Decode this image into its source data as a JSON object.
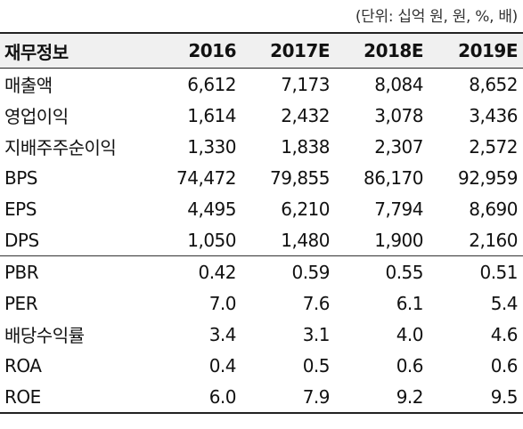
{
  "unit_note": "(단위: 십억 원, 원, %, 배)",
  "header": {
    "label": "재무정보",
    "years": [
      "2016",
      "2017E",
      "2018E",
      "2019E"
    ]
  },
  "rows": [
    {
      "label": "매출액",
      "values": [
        "6,612",
        "7,173",
        "8,084",
        "8,652"
      ]
    },
    {
      "label": "영업이익",
      "values": [
        "1,614",
        "2,432",
        "3,078",
        "3,436"
      ]
    },
    {
      "label": "지배주주순이익",
      "values": [
        "1,330",
        "1,838",
        "2,307",
        "2,572"
      ]
    },
    {
      "label": "BPS",
      "values": [
        "74,472",
        "79,855",
        "86,170",
        "92,959"
      ]
    },
    {
      "label": "EPS",
      "values": [
        "4,495",
        "6,210",
        "7,794",
        "8,690"
      ]
    },
    {
      "label": "DPS",
      "values": [
        "1,050",
        "1,480",
        "1,900",
        "2,160"
      ]
    },
    {
      "label": "PBR",
      "values": [
        "0.42",
        "0.59",
        "0.55",
        "0.51"
      ]
    },
    {
      "label": "PER",
      "values": [
        "7.0",
        "7.6",
        "6.1",
        "5.4"
      ]
    },
    {
      "label": "배당수익률",
      "values": [
        "3.4",
        "3.1",
        "4.0",
        "4.6"
      ]
    },
    {
      "label": "ROA",
      "values": [
        "0.4",
        "0.5",
        "0.6",
        "0.6"
      ]
    },
    {
      "label": "ROE",
      "values": [
        "6.0",
        "7.9",
        "9.2",
        "9.5"
      ]
    }
  ]
}
